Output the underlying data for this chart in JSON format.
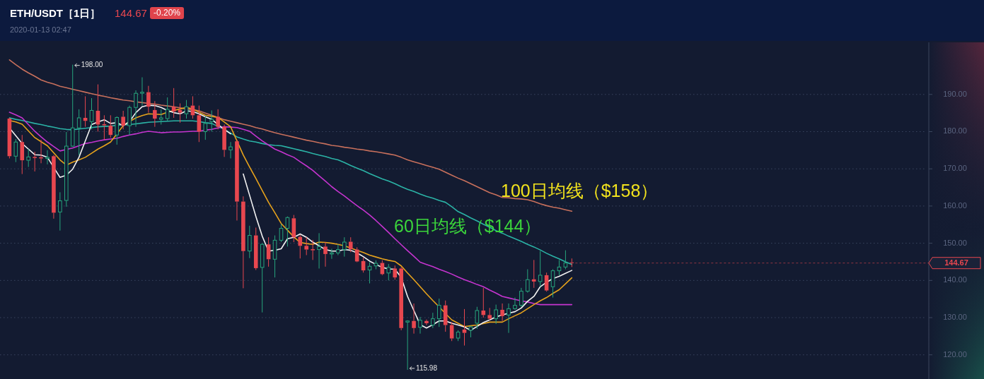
{
  "chart_data": {
    "type": "candlestick",
    "title": "ETH/USDT［1日］",
    "subtitle": "2020-01-13 02:47",
    "categories": [
      null,
      null,
      null,
      null,
      null,
      null,
      null,
      null,
      null,
      null,
      null,
      null,
      null,
      null,
      null,
      null,
      null,
      null,
      null,
      null,
      null,
      null,
      null,
      null,
      null,
      null,
      null,
      null,
      null,
      null,
      null,
      null,
      null,
      null,
      null,
      null,
      null,
      null,
      null,
      null,
      null,
      null,
      null,
      null,
      null,
      null,
      null,
      null,
      null,
      null,
      null,
      null,
      null,
      null,
      null,
      null,
      null,
      null,
      null,
      null,
      null,
      null,
      null,
      null,
      null,
      null,
      null,
      null,
      null,
      null,
      null,
      null,
      null,
      null,
      null,
      null,
      null,
      null,
      null,
      null,
      null,
      null,
      null,
      null,
      null,
      null,
      null,
      null,
      null,
      null,
      null,
      null,
      null,
      null,
      null,
      null,
      null,
      null,
      null,
      null,
      null,
      null,
      null,
      null,
      null,
      null,
      null,
      null,
      null,
      null,
      null,
      null,
      null,
      null,
      null,
      null,
      null,
      null,
      null,
      null,
      null,
      null,
      null,
      null,
      null,
      null,
      null,
      null,
      null,
      null,
      null,
      null,
      null,
      null,
      null,
      null,
      null,
      null,
      null,
      null,
      null,
      null,
      null,
      null,
      null,
      null,
      null
    ],
    "ohlc": [
      null,
      [
        183.5,
        183.7,
        172.8,
        173.4
      ],
      [
        173.4,
        178,
        171.8,
        177.2
      ],
      [
        177.2,
        179.1,
        168.6,
        172.3
      ],
      [
        172.3,
        175.3,
        170.5,
        173.2
      ],
      [
        173.2,
        174.6,
        169.3,
        172.9
      ],
      [
        173.1,
        177.8,
        171.5,
        172.8
      ],
      [
        172.8,
        175,
        171.2,
        173.1
      ],
      [
        173.4,
        173.7,
        156.6,
        158.2
      ],
      [
        158.4,
        163.7,
        153.4,
        161.4
      ],
      [
        161.5,
        179.9,
        159.8,
        176.1
      ],
      [
        176.1,
        198,
        175.9,
        181
      ],
      [
        181,
        186,
        173.7,
        183.7
      ],
      [
        183.7,
        189.5,
        181.3,
        182.9
      ],
      [
        182.7,
        189,
        180.6,
        185.7
      ],
      [
        185.6,
        192.7,
        180,
        181.9
      ],
      [
        182,
        184.4,
        177.8,
        181.7
      ],
      [
        181.6,
        184.4,
        178.4,
        179.1
      ],
      [
        179.1,
        184.1,
        176.5,
        183.8
      ],
      [
        184,
        185.6,
        180.6,
        181.6
      ],
      [
        181.6,
        187,
        179.1,
        186.5
      ],
      [
        186.5,
        191.1,
        181.3,
        190.3
      ],
      [
        190.3,
        194.6,
        187,
        190.6
      ],
      [
        190.6,
        192.3,
        185.1,
        186.7
      ],
      [
        185.8,
        188.2,
        181.3,
        183.5
      ],
      [
        183.3,
        186,
        181.9,
        183.7
      ],
      [
        183.5,
        189.2,
        182.9,
        186
      ],
      [
        186.7,
        191.7,
        183.7,
        185.4
      ],
      [
        185.8,
        187.6,
        182.4,
        185.1
      ],
      [
        184.8,
        188.5,
        183.5,
        186.7
      ],
      [
        187,
        189.5,
        183.5,
        184.4
      ],
      [
        184.4,
        187,
        177.2,
        180
      ],
      [
        180,
        184.1,
        177.8,
        182.2
      ],
      [
        182.7,
        185.7,
        180,
        183.3
      ],
      [
        184,
        186,
        180.6,
        181.3
      ],
      [
        181.3,
        181.9,
        173.2,
        175.1
      ],
      [
        175.1,
        177.2,
        172.8,
        175.9
      ],
      [
        177.4,
        177.8,
        156.1,
        161.2
      ],
      [
        161.2,
        162.6,
        137.9,
        147.9
      ],
      [
        147.9,
        154.7,
        146,
        152.1
      ],
      [
        152.1,
        154.2,
        142.8,
        143.3
      ],
      [
        143.5,
        150,
        131.4,
        149.7
      ],
      [
        149.7,
        151.6,
        143.7,
        145.7
      ],
      [
        145.7,
        152.1,
        140.8,
        150.8
      ],
      [
        150.8,
        155.2,
        150.3,
        154
      ],
      [
        154,
        157.2,
        149.1,
        156.9
      ],
      [
        156.7,
        157.6,
        150.3,
        151.6
      ],
      [
        151.7,
        152.2,
        145.9,
        149.3
      ],
      [
        149.3,
        151.6,
        146.8,
        148.3
      ],
      [
        148.4,
        150.9,
        145.5,
        148.1
      ],
      [
        148.3,
        152.7,
        143.2,
        149.1
      ],
      [
        149.1,
        150.3,
        143.7,
        147.1
      ],
      [
        147.1,
        148.5,
        145.8,
        147.4
      ],
      [
        147.4,
        149.7,
        146.8,
        148.3
      ],
      [
        148.3,
        151.6,
        146.4,
        150.3
      ],
      [
        150.4,
        151.6,
        147.6,
        148.4
      ],
      [
        148.3,
        148.9,
        144.9,
        145.1
      ],
      [
        145.2,
        146.2,
        142.1,
        142.7
      ],
      [
        142.8,
        144.9,
        139.2,
        143.8
      ],
      [
        143.9,
        145.4,
        143,
        144.6
      ],
      [
        144.7,
        145.4,
        141.4,
        141.7
      ],
      [
        142,
        144.4,
        140,
        143.5
      ],
      [
        143.2,
        144,
        140.2,
        140.8
      ],
      [
        143.2,
        143.6,
        126.6,
        127.2
      ],
      [
        128.8,
        129.3,
        115.98,
        129.1
      ],
      [
        129.1,
        133.8,
        125.7,
        127.2
      ],
      [
        127.4,
        130.2,
        125.7,
        129.3
      ],
      [
        129.1,
        129.5,
        128,
        128.5
      ],
      [
        128,
        131.3,
        127.2,
        129.7
      ],
      [
        129.7,
        135.1,
        127.5,
        133.3
      ],
      [
        133.3,
        134.6,
        126.2,
        128
      ],
      [
        128,
        128.8,
        123.7,
        124.4
      ],
      [
        124.5,
        126.6,
        123.7,
        126.1
      ],
      [
        126.8,
        132.3,
        122.5,
        125.9
      ],
      [
        126.6,
        127.8,
        124.7,
        127.5
      ],
      [
        128.5,
        132.9,
        127,
        131.9
      ],
      [
        131.9,
        138,
        130,
        130.7
      ],
      [
        130.7,
        132.6,
        129.3,
        129.7
      ],
      [
        129.7,
        133.5,
        128.3,
        132.1
      ],
      [
        132.1,
        133.8,
        129.1,
        130.4
      ],
      [
        130.7,
        133.8,
        125.9,
        132.4
      ],
      [
        132.4,
        135.4,
        132.1,
        133.3
      ],
      [
        133.3,
        138,
        132.9,
        137.1
      ],
      [
        137.1,
        143,
        136.7,
        140.2
      ],
      [
        140.3,
        145.5,
        138,
        139.7
      ],
      [
        139.7,
        147.9,
        138.3,
        141.4
      ],
      [
        141.4,
        142.1,
        137,
        137.3
      ],
      [
        138.3,
        143,
        135.4,
        142.6
      ],
      [
        142.6,
        145.5,
        141.4,
        143.6
      ],
      [
        143.6,
        148.1,
        143,
        144.7
      ],
      [
        144.85,
        145.9,
        143.6,
        144.67
      ],
      null,
      null,
      null,
      null,
      null,
      null,
      null,
      null,
      null,
      null,
      null,
      null,
      null,
      null,
      null,
      null,
      null,
      null,
      null,
      null,
      null,
      null,
      null,
      null,
      null,
      null,
      null,
      null,
      null,
      null,
      null,
      null,
      null,
      null,
      null,
      null,
      null,
      null,
      null,
      null,
      null,
      null,
      null,
      null,
      null,
      null,
      null,
      null,
      null,
      null,
      null,
      null,
      null,
      null,
      null,
      null
    ],
    "series": [
      {
        "type": "line",
        "color": "#c8705c",
        "values": [
          null,
          199.3,
          198.0,
          196.8,
          195.8,
          194.9,
          193.9,
          193.3,
          192.8,
          192.2,
          191.8,
          191.4,
          191.0,
          190.6,
          190.2,
          189.8,
          189.5,
          189.1,
          188.8,
          188.5,
          188.3,
          188.0,
          187.8,
          187.6,
          187.4,
          187.1,
          186.9,
          186.7,
          186.4,
          186.1,
          185.9,
          185.6,
          185.0,
          184.4,
          183.8,
          183.2,
          182.8,
          182.4,
          182.0,
          181.6,
          181.1,
          180.7,
          180.2,
          179.7,
          179.3,
          178.9,
          178.5,
          178.1,
          177.7,
          177.4,
          177.0,
          176.7,
          176.3,
          176.1,
          175.8,
          175.6,
          175.3,
          175.1,
          174.8,
          174.6,
          174.3,
          174.0,
          173.7,
          173.1,
          172.4,
          171.9,
          171.4,
          170.9,
          170.4,
          169.9,
          169.1,
          168.3,
          167.5,
          166.8,
          166.0,
          165.2,
          164.4,
          163.6,
          163.0,
          162.3,
          162.2,
          162.0,
          161.9,
          161.7,
          161.2,
          160.6,
          160.1,
          159.7,
          159.4,
          159.0,
          158.6,
          null,
          null,
          null,
          null,
          null,
          null,
          null,
          null,
          null,
          null,
          null,
          null,
          null,
          null,
          null,
          null,
          null,
          null,
          null,
          null,
          null,
          null,
          null,
          null,
          null,
          null,
          null,
          null,
          null,
          null,
          null,
          null,
          null,
          null,
          null,
          null,
          null,
          null,
          null,
          null,
          null,
          null,
          null,
          null,
          null,
          null,
          null,
          null,
          null,
          null,
          null,
          null,
          null,
          null,
          null,
          null
        ]
      },
      {
        "type": "line",
        "color": "#2bb3a6",
        "values": [
          null,
          183.7,
          183.3,
          183.0,
          182.6,
          182.2,
          181.9,
          181.5,
          181.2,
          180.8,
          180.6,
          180.5,
          180.7,
          180.9,
          181.1,
          181.3,
          181.4,
          181.5,
          181.7,
          181.8,
          181.9,
          182.1,
          182.3,
          182.5,
          182.6,
          182.7,
          182.8,
          182.9,
          182.9,
          182.9,
          182.9,
          182.7,
          182.4,
          182.2,
          181.4,
          180.6,
          179.6,
          178.6,
          178.0,
          177.5,
          177.2,
          176.8,
          176.5,
          176.3,
          176.2,
          175.8,
          175.4,
          175.0,
          174.6,
          174.1,
          173.7,
          173.3,
          172.8,
          172.4,
          171.7,
          170.9,
          170.2,
          169.5,
          168.7,
          168.0,
          167.3,
          166.7,
          166.0,
          165.2,
          164.5,
          163.9,
          163.2,
          162.6,
          162.1,
          161.5,
          161.0,
          159.8,
          158.5,
          157.7,
          156.8,
          156.0,
          155.1,
          154.3,
          153.4,
          152.7,
          151.9,
          151.2,
          150.5,
          149.7,
          149.0,
          148.2,
          147.3,
          146.5,
          145.8,
          145.0,
          144.3,
          null,
          null,
          null,
          null,
          null,
          null,
          null,
          null,
          null,
          null,
          null,
          null,
          null,
          null,
          null,
          null,
          null,
          null,
          null,
          null,
          null,
          null,
          null,
          null,
          null,
          null,
          null,
          null,
          null,
          null,
          null,
          null,
          null,
          null,
          null,
          null,
          null,
          null,
          null,
          null,
          null,
          null,
          null,
          null,
          null,
          null,
          null,
          null,
          null,
          null,
          null,
          null,
          null,
          null,
          null,
          null
        ]
      },
      {
        "type": "line",
        "color": "#c534cf",
        "values": [
          null,
          185.2,
          184.5,
          183.7,
          181.9,
          180.1,
          178.6,
          177.2,
          176.0,
          174.8,
          175.2,
          175.6,
          176.2,
          176.8,
          177.1,
          177.5,
          177.8,
          178.0,
          178.2,
          178.7,
          179.1,
          179.4,
          179.8,
          180.1,
          179.9,
          179.7,
          179.8,
          179.9,
          179.9,
          180.0,
          180.1,
          180.1,
          180.4,
          180.6,
          181.0,
          181.3,
          181.2,
          181.1,
          180.6,
          180.1,
          178.8,
          177.5,
          176.4,
          175.3,
          174.6,
          173.8,
          173.1,
          171.9,
          170.8,
          169.6,
          168.1,
          166.7,
          165.2,
          163.9,
          162.7,
          161.4,
          160.1,
          158.9,
          157.6,
          156.1,
          154.5,
          152.9,
          151.2,
          149.6,
          148.0,
          146.5,
          144.9,
          144.3,
          143.7,
          143.0,
          142.4,
          141.7,
          140.9,
          140.2,
          139.6,
          138.9,
          138.3,
          137.4,
          136.6,
          135.7,
          135.3,
          134.9,
          134.5,
          134.2,
          133.8,
          133.5,
          133.5,
          133.5,
          133.5,
          133.5,
          133.5,
          null,
          null,
          null,
          null,
          null,
          null,
          null,
          null,
          null,
          null,
          null,
          null,
          null,
          null,
          null,
          null,
          null,
          null,
          null,
          null,
          null,
          null,
          null,
          null,
          null,
          null,
          null,
          null,
          null,
          null,
          null,
          null,
          null,
          null,
          null,
          null,
          null,
          null,
          null,
          null,
          null,
          null,
          null,
          null,
          null,
          null,
          null,
          null,
          null,
          null,
          null,
          null,
          null,
          null,
          null,
          null
        ]
      },
      {
        "type": "line",
        "color": "#e6a21c",
        "values": [
          null,
          183.0,
          182.6,
          182.0,
          180.2,
          178.4,
          177.3,
          176.2,
          174.3,
          172.4,
          171.0,
          171.8,
          172.4,
          173.1,
          174.2,
          175.3,
          176.2,
          177.2,
          179.4,
          181.6,
          182.7,
          183.7,
          184.3,
          184.8,
          184.7,
          184.6,
          185.2,
          185.7,
          186.1,
          186.5,
          186.1,
          185.2,
          184.4,
          184.1,
          183.8,
          182.6,
          181.3,
          177.5,
          173.7,
          170.5,
          167.4,
          164.2,
          161.0,
          158.2,
          155.3,
          153.5,
          151.7,
          150.2,
          149.9,
          149.7,
          150.3,
          150.2,
          150.0,
          149.7,
          149.3,
          148.7,
          148.1,
          147.5,
          146.8,
          146.3,
          145.8,
          145.4,
          145.1,
          143.9,
          142.0,
          140.2,
          138.3,
          136.4,
          134.6,
          132.9,
          131.1,
          129.4,
          128.5,
          127.6,
          127.8,
          128.0,
          128.4,
          128.8,
          128.8,
          128.8,
          129.7,
          130.5,
          131.3,
          132.4,
          133.5,
          134.5,
          135.4,
          136.5,
          137.5,
          139.1,
          140.7,
          null,
          null,
          null,
          null,
          null,
          null,
          null,
          null,
          null,
          null,
          null,
          null,
          null,
          null,
          null,
          null,
          null,
          null,
          null,
          null,
          null,
          null,
          null,
          null,
          null,
          null,
          null,
          null,
          null,
          null,
          null,
          null,
          null,
          null,
          null,
          null,
          null,
          null,
          null,
          null,
          null,
          null,
          null,
          null,
          null,
          null,
          null,
          null,
          null,
          null,
          null,
          null,
          null,
          null,
          null,
          null
        ]
      },
      {
        "type": "line",
        "color": "#f2f2f2",
        "values": [
          null,
          181,
          178.9,
          176.8,
          175.3,
          173.8,
          173.7,
          173.1,
          170.4,
          167.7,
          168.3,
          169.9,
          173.1,
          177.5,
          181.9,
          182.6,
          183.2,
          182.2,
          182.4,
          181.6,
          182.7,
          185.1,
          186.7,
          187.1,
          187,
          186.5,
          185.7,
          185.1,
          184.8,
          185.6,
          185.4,
          184.8,
          184.0,
          183.3,
          181.9,
          180.6,
          179.4,
          null,
          168.6,
          162.9,
          157.2,
          151.9,
          147.9,
          148.1,
          148.5,
          151.2,
          151.6,
          152.5,
          151.6,
          150.3,
          149.3,
          148.3,
          147.9,
          147.9,
          148.3,
          148.1,
          147.4,
          146.4,
          145.2,
          144.3,
          143.5,
          143.1,
          143,
          140.8,
          135.7,
          131.9,
          128.1,
          127.2,
          128.1,
          129.1,
          129.1,
          128.5,
          128,
          127.5,
          126.6,
          127.6,
          128.7,
          129.4,
          130.2,
          130.7,
          131.2,
          131.6,
          132.6,
          134.4,
          135.7,
          138.3,
          139.5,
          140.5,
          141.1,
          141.9,
          142.7,
          null,
          null,
          null,
          null,
          null,
          null,
          null,
          null,
          null,
          null,
          null,
          null,
          null,
          null,
          null,
          null,
          null,
          null,
          null,
          null,
          null,
          null,
          null,
          null,
          null,
          null,
          null,
          null,
          null,
          null,
          null,
          null,
          null,
          null,
          null,
          null,
          null,
          null,
          null,
          null,
          null,
          null,
          null,
          null,
          null,
          null,
          null,
          null,
          null,
          null,
          null,
          null,
          null,
          null,
          null,
          null
        ]
      }
    ],
    "ylim": [
      113.5,
      204
    ],
    "yticks": [
      {
        "value": 120,
        "label": "120.00"
      },
      {
        "value": 130,
        "label": "130.00"
      },
      {
        "value": 140,
        "label": "140.00"
      },
      {
        "value": 150,
        "label": "150.00"
      },
      {
        "value": 160,
        "label": "160.00"
      },
      {
        "value": 170,
        "label": "170.00"
      },
      {
        "value": 180,
        "label": "180.00"
      },
      {
        "value": 190,
        "label": "190.00"
      }
    ],
    "grid": "y",
    "tick_labels": "y",
    "ref_lines": [
      {
        "axis": "y",
        "value": 144.67,
        "label": "144.67",
        "color": "#e8474f"
      }
    ],
    "annotations": [
      "144.67",
      "-0.20%",
      "198.00",
      "115.98",
      "100日均线（$158）",
      "60日均线（$144）"
    ]
  }
}
